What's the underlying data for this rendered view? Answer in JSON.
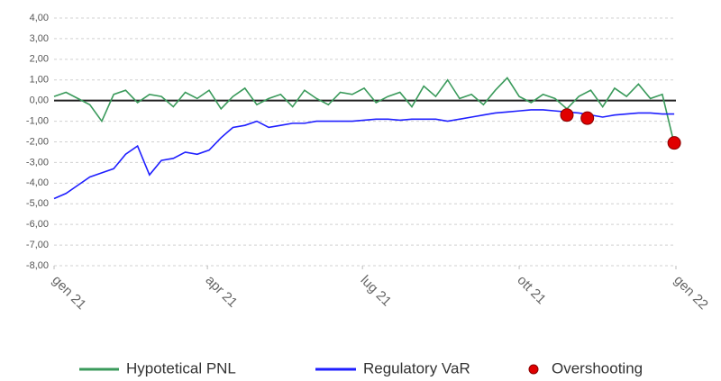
{
  "chart_data": {
    "type": "line",
    "x": [
      0,
      7,
      14,
      21,
      28,
      35,
      42,
      49,
      56,
      63,
      70,
      77,
      84,
      91,
      98,
      105,
      112,
      119,
      126,
      133,
      140,
      147,
      154,
      161,
      168,
      175,
      182,
      189,
      196,
      203,
      210,
      217,
      224,
      231,
      238,
      245,
      252,
      259,
      266,
      273,
      280,
      287,
      294,
      301,
      308,
      315,
      322,
      329,
      336,
      343,
      350,
      357,
      364
    ],
    "series": [
      {
        "name": "Hypotetical PNL",
        "color": "#3a9a5b",
        "values": [
          0.2,
          0.4,
          0.1,
          -0.2,
          -1.0,
          0.3,
          0.5,
          -0.1,
          0.3,
          0.2,
          -0.3,
          0.4,
          0.1,
          0.5,
          -0.4,
          0.2,
          0.6,
          -0.2,
          0.1,
          0.3,
          -0.3,
          0.5,
          0.1,
          -0.2,
          0.4,
          0.3,
          0.6,
          -0.1,
          0.2,
          0.4,
          -0.3,
          0.7,
          0.2,
          1.0,
          0.1,
          0.3,
          -0.2,
          0.5,
          1.1,
          0.2,
          -0.1,
          0.3,
          0.1,
          -0.4,
          0.2,
          0.5,
          -0.3,
          0.6,
          0.2,
          0.8,
          0.1,
          0.3,
          -2.1
        ]
      },
      {
        "name": "Regulatory VaR",
        "color": "#1f1fff",
        "values": [
          -4.75,
          -4.5,
          -4.1,
          -3.7,
          -3.5,
          -3.3,
          -2.6,
          -2.2,
          -3.6,
          -2.9,
          -2.8,
          -2.5,
          -2.6,
          -2.4,
          -1.8,
          -1.3,
          -1.2,
          -1.0,
          -1.3,
          -1.2,
          -1.1,
          -1.1,
          -1.0,
          -1.0,
          -1.0,
          -1.0,
          -0.95,
          -0.9,
          -0.9,
          -0.95,
          -0.9,
          -0.9,
          -0.9,
          -1.0,
          -0.9,
          -0.8,
          -0.7,
          -0.6,
          -0.55,
          -0.5,
          -0.45,
          -0.45,
          -0.5,
          -0.55,
          -0.6,
          -0.7,
          -0.8,
          -0.7,
          -0.65,
          -0.6,
          -0.6,
          -0.65,
          -0.65
        ]
      }
    ],
    "points": {
      "name": "Overshooting",
      "color": "#e00000",
      "x": [
        301,
        313,
        364
      ],
      "values": [
        -0.7,
        -0.85,
        -2.05
      ]
    },
    "xlim": [
      0,
      365
    ],
    "xticks": [
      {
        "value": 0,
        "label": "gen 21"
      },
      {
        "value": 90,
        "label": "apr 21"
      },
      {
        "value": 181,
        "label": "lug 21"
      },
      {
        "value": 273,
        "label": "ott 21"
      },
      {
        "value": 365,
        "label": "gen 22"
      }
    ],
    "ylim": [
      -8,
      4
    ],
    "yticks": [
      {
        "value": 4,
        "label": "4,00"
      },
      {
        "value": 3,
        "label": "3,00"
      },
      {
        "value": 2,
        "label": "2,00"
      },
      {
        "value": 1,
        "label": "1,00"
      },
      {
        "value": 0,
        "label": "0,00"
      },
      {
        "value": -1,
        "label": "-1,00"
      },
      {
        "value": -2,
        "label": "-2,00"
      },
      {
        "value": -3,
        "label": "-3,00"
      },
      {
        "value": -4,
        "label": "-4,00"
      },
      {
        "value": -5,
        "label": "-5,00"
      },
      {
        "value": -6,
        "label": "-6,00"
      },
      {
        "value": -7,
        "label": "-7,00"
      },
      {
        "value": -8,
        "label": "-8,00"
      }
    ],
    "grid": true
  }
}
